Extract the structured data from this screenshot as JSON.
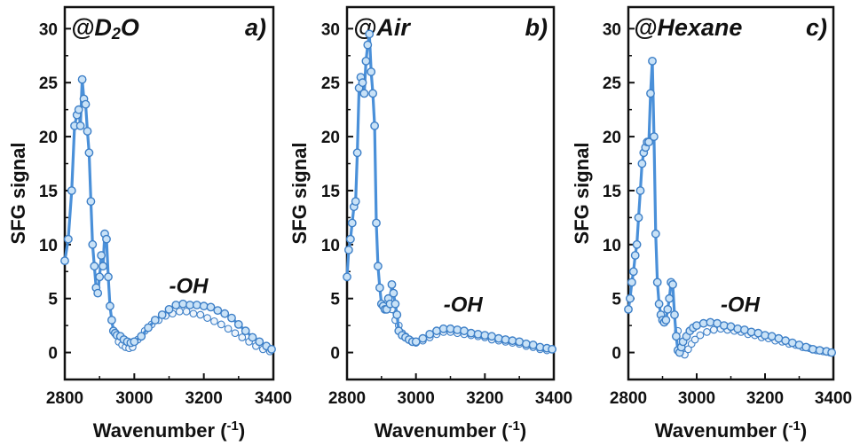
{
  "chart_data": [
    {
      "type": "line",
      "title": "@D2O",
      "title_main": "@D",
      "title_sub": "2",
      "title_end": "O",
      "panel": "a)",
      "annotation": {
        "text": "-OH",
        "x": 3100,
        "y": 5.5
      },
      "xlabel": "Wavenumber (-1)",
      "xlabel_main": "Wavenumber (",
      "xlabel_sup": "-1",
      "xlabel_end": ")",
      "ylabel": "SFG signal",
      "xlim": [
        2800,
        3400
      ],
      "ylim": [
        -2.5,
        32
      ],
      "xticks": [
        "2800",
        "3000",
        "3200",
        "3400"
      ],
      "yticks": [
        "0",
        "5",
        "10",
        "15",
        "20",
        "25",
        "30"
      ],
      "series": [
        {
          "x": [
            2800,
            2810,
            2820,
            2828,
            2835,
            2840,
            2845,
            2850,
            2855,
            2860,
            2865,
            2870,
            2875,
            2880,
            2885,
            2890,
            2895,
            2900,
            2905,
            2910,
            2915,
            2920,
            2925,
            2930,
            2935,
            2940,
            2945,
            2950,
            2960,
            2970,
            2980,
            2990,
            3000,
            3020,
            3040,
            3060,
            3080,
            3100,
            3120,
            3140,
            3160,
            3180,
            3200,
            3220,
            3240,
            3260,
            3280,
            3300,
            3320,
            3340,
            3360,
            3380,
            3395
          ],
          "y": [
            8.5,
            10.5,
            15,
            21,
            22,
            22.5,
            21,
            25.3,
            23.5,
            23,
            20.5,
            18.5,
            14,
            10,
            8,
            6,
            5.5,
            7,
            9,
            8,
            11,
            10.5,
            7,
            4.3,
            3,
            2,
            1.8,
            1.6,
            1.5,
            1.2,
            1.0,
            0.9,
            1.0,
            1.5,
            2.3,
            3.0,
            3.5,
            4.0,
            4.4,
            4.5,
            4.4,
            4.4,
            4.3,
            4.2,
            3.9,
            3.6,
            3.2,
            2.6,
            2.0,
            1.4,
            1.0,
            0.6,
            0.3
          ]
        },
        {
          "x": [
            2955,
            2965,
            2975,
            2985,
            2995,
            3010,
            3030,
            3050,
            3070,
            3090,
            3110,
            3130,
            3150,
            3170,
            3190,
            3210,
            3230,
            3250,
            3270,
            3290,
            3310,
            3330,
            3350,
            3370,
            3390
          ],
          "y": [
            1.0,
            0.7,
            0.5,
            0.4,
            0.5,
            1.2,
            2.0,
            2.6,
            3.0,
            3.4,
            3.6,
            3.8,
            3.8,
            3.6,
            3.5,
            3.2,
            2.9,
            2.6,
            2.2,
            1.8,
            1.4,
            1.0,
            0.6,
            0.3,
            0.1
          ]
        }
      ]
    },
    {
      "type": "line",
      "title": "@Air",
      "panel": "b)",
      "annotation": {
        "text": "-OH",
        "x": 3080,
        "y": 3.8
      },
      "xlabel": "Wavenumber (-1)",
      "xlabel_main": "Wavenumber (",
      "xlabel_sup": "-1",
      "xlabel_end": ")",
      "ylabel": "SFG signal",
      "xlim": [
        2800,
        3400
      ],
      "ylim": [
        -2.5,
        32
      ],
      "xticks": [
        "2800",
        "3000",
        "3200",
        "3400"
      ],
      "yticks": [
        "0",
        "5",
        "10",
        "15",
        "20",
        "25",
        "30"
      ],
      "series": [
        {
          "x": [
            2800,
            2805,
            2810,
            2815,
            2820,
            2825,
            2830,
            2835,
            2840,
            2845,
            2850,
            2855,
            2860,
            2865,
            2870,
            2875,
            2880,
            2885,
            2890,
            2895,
            2900,
            2905,
            2910,
            2915,
            2920,
            2925,
            2930,
            2935,
            2940,
            2945,
            2950,
            2960,
            2970,
            2980,
            2990,
            3000,
            3020,
            3040,
            3060,
            3080,
            3100,
            3120,
            3140,
            3160,
            3180,
            3200,
            3220,
            3240,
            3260,
            3280,
            3300,
            3320,
            3340,
            3360,
            3380,
            3395
          ],
          "y": [
            7,
            9.5,
            10.5,
            12,
            13.5,
            14,
            18.5,
            24.5,
            25.5,
            25,
            24,
            27,
            28.5,
            29.5,
            26,
            24,
            21,
            12,
            8,
            6,
            4.5,
            4.3,
            4.0,
            4.0,
            5.0,
            4.5,
            6.3,
            5.5,
            4.5,
            3.5,
            2.0,
            1.6,
            1.4,
            1.2,
            1.0,
            1.0,
            1.3,
            1.7,
            2.0,
            2.2,
            2.2,
            2.1,
            2.0,
            1.8,
            1.7,
            1.6,
            1.5,
            1.3,
            1.2,
            1.1,
            1.0,
            0.8,
            0.7,
            0.5,
            0.4,
            0.3
          ]
        },
        {
          "x": [
            2930,
            2940,
            2950,
            2960,
            2970,
            2980,
            2990,
            3000,
            3020,
            3040,
            3060,
            3080,
            3100,
            3120,
            3140,
            3160,
            3180,
            3200,
            3220,
            3240,
            3260,
            3280,
            3300,
            3320,
            3340,
            3360,
            3380
          ],
          "y": [
            4.0,
            3.0,
            2.5,
            1.8,
            1.5,
            1.2,
            1.0,
            0.9,
            1.1,
            1.4,
            1.7,
            1.9,
            1.9,
            1.8,
            1.7,
            1.6,
            1.5,
            1.4,
            1.2,
            1.1,
            1.0,
            0.9,
            0.8,
            0.6,
            0.5,
            0.3,
            0.2
          ]
        }
      ]
    },
    {
      "type": "line",
      "title": "@Hexane",
      "panel": "c)",
      "annotation": {
        "text": "-OH",
        "x": 3070,
        "y": 3.8
      },
      "xlabel": "Wavenumber (-1)",
      "xlabel_main": "Wavenumber (",
      "xlabel_sup": "-1",
      "xlabel_end": ")",
      "ylabel": "SFG signal",
      "xlim": [
        2800,
        3400
      ],
      "ylim": [
        -2.5,
        32
      ],
      "xticks": [
        "2800",
        "3000",
        "3200",
        "3400"
      ],
      "yticks": [
        "0",
        "5",
        "10",
        "15",
        "20",
        "25",
        "30"
      ],
      "series": [
        {
          "x": [
            2800,
            2805,
            2810,
            2815,
            2820,
            2825,
            2830,
            2835,
            2840,
            2845,
            2850,
            2855,
            2860,
            2865,
            2870,
            2875,
            2880,
            2885,
            2890,
            2895,
            2900,
            2905,
            2910,
            2915,
            2920,
            2925,
            2930,
            2935,
            2940,
            2945,
            2950,
            2955,
            2960,
            2970,
            2980,
            2990,
            3000,
            3020,
            3040,
            3060,
            3080,
            3100,
            3120,
            3140,
            3160,
            3180,
            3200,
            3220,
            3240,
            3260,
            3280,
            3300,
            3320,
            3340,
            3360,
            3380,
            3395
          ],
          "y": [
            4,
            5,
            6.5,
            7.5,
            9,
            10,
            12.5,
            15,
            17.5,
            18.5,
            19,
            19.5,
            19.5,
            24,
            27,
            20,
            11,
            6.5,
            4.5,
            3.5,
            3.0,
            2.8,
            3.0,
            4.0,
            5.0,
            6.5,
            6.3,
            3.5,
            1.5,
            0.2,
            0.0,
            0.5,
            1.0,
            1.5,
            2.0,
            2.3,
            2.5,
            2.7,
            2.8,
            2.7,
            2.5,
            2.4,
            2.2,
            2.1,
            1.9,
            1.8,
            1.6,
            1.5,
            1.3,
            1.1,
            0.9,
            0.7,
            0.5,
            0.3,
            0.2,
            0.1,
            0.0
          ]
        },
        {
          "x": [
            2945,
            2955,
            2965,
            2975,
            2985,
            2995,
            3010,
            3030,
            3050,
            3070,
            3090,
            3110,
            3130,
            3150,
            3170,
            3190,
            3210,
            3230,
            3250,
            3270,
            3290,
            3310,
            3330,
            3350,
            3370,
            3390
          ],
          "y": [
            2.0,
            0.5,
            -0.2,
            0.3,
            0.8,
            1.2,
            1.6,
            1.9,
            2.1,
            2.2,
            2.1,
            2.0,
            1.9,
            1.7,
            1.6,
            1.4,
            1.3,
            1.1,
            1.0,
            0.8,
            0.7,
            0.5,
            0.4,
            0.2,
            0.1,
            0.0
          ]
        }
      ]
    }
  ],
  "colors": {
    "line": "#4a90d9",
    "marker_fill": "#c9e2f7",
    "marker_stroke": "#3d7fc7",
    "axis": "#111111"
  }
}
